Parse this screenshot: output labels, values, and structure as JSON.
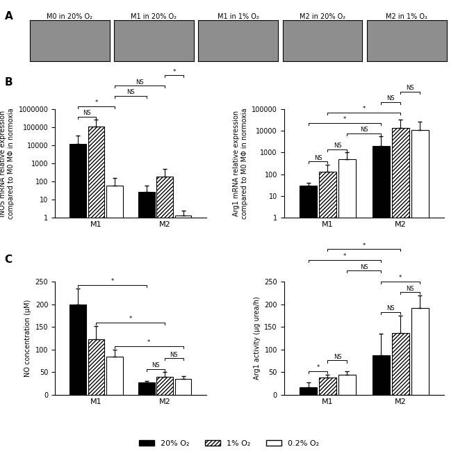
{
  "panel_labels": [
    "A",
    "B",
    "C"
  ],
  "images": [
    "M0 in 20% O₂",
    "M1 in 20% O₂",
    "M1 in 1% O₂",
    "M2 in 20% O₂",
    "M2 in 1% O₂"
  ],
  "legend": "lower center",
  "chart_data": [
    {
      "type": "bar",
      "log": "y",
      "y_label": "iNOS mRNA relative expression\ncompared to M0 MΦ in normoxia",
      "categories": [
        "M1",
        "M2"
      ],
      "ylim": [
        1,
        1000000
      ],
      "yticks": [
        1,
        10,
        100,
        1000,
        10000,
        100000,
        1000000
      ],
      "series": [
        {
          "name": "20% O₂",
          "color": "#000000",
          "values": [
            12000,
            28
          ],
          "errors": [
            22000,
            32
          ]
        },
        {
          "name": "1% O₂",
          "color": "#ffffff",
          "values": [
            110000,
            190
          ],
          "errors": [
            140000,
            310
          ]
        },
        {
          "name": "0.2% O₂",
          "color": "#ffffff",
          "values": [
            60,
            1.4
          ],
          "errors": [
            100,
            1.1
          ]
        }
      ],
      "significance": [
        {
          "a": [
            "M1",
            "20% O₂"
          ],
          "b": [
            "M1",
            "1% O₂"
          ],
          "label": "NS"
        },
        {
          "a": [
            "M1",
            "20% O₂"
          ],
          "b": [
            "M1",
            "0.2% O₂"
          ],
          "label": "*"
        },
        {
          "a": [
            "M1",
            "0.2% O₂"
          ],
          "b": [
            "M2",
            "20% O₂"
          ],
          "label": "NS"
        },
        {
          "a": [
            "M1",
            "0.2% O₂"
          ],
          "b": [
            "M2",
            "1% O₂"
          ],
          "label": "NS"
        },
        {
          "a": [
            "M2",
            "1% O₂"
          ],
          "b": [
            "M2",
            "0.2% O₂"
          ],
          "label": "*"
        }
      ]
    },
    {
      "type": "bar",
      "log": "y",
      "y_label": "Arg1 mRNA relative expression\ncompared to M0 MΦ in normoxia",
      "categories": [
        "M1",
        "M2"
      ],
      "ylim": [
        1,
        100000
      ],
      "yticks": [
        1,
        10,
        100,
        1000,
        10000,
        100000
      ],
      "series": [
        {
          "name": "20% O₂",
          "color": "#000000",
          "values": [
            30,
            2000
          ],
          "errors": [
            10,
            3500
          ]
        },
        {
          "name": "1% O₂",
          "color": "#ffffff",
          "values": [
            130,
            13000
          ],
          "errors": [
            150,
            19000
          ]
        },
        {
          "name": "0.2% O₂",
          "color": "#ffffff",
          "values": [
            500,
            11000
          ],
          "errors": [
            500,
            15000
          ]
        }
      ],
      "significance": [
        {
          "a": [
            "M1",
            "20% O₂"
          ],
          "b": [
            "M1",
            "1% O₂"
          ],
          "label": "NS"
        },
        {
          "a": [
            "M1",
            "1% O₂"
          ],
          "b": [
            "M1",
            "0.2% O₂"
          ],
          "label": "NS"
        },
        {
          "a": [
            "M1",
            "0.2% O₂"
          ],
          "b": [
            "M2",
            "20% O₂"
          ],
          "label": "NS"
        },
        {
          "a": [
            "M1",
            "20% O₂"
          ],
          "b": [
            "M2",
            "20% O₂"
          ],
          "label": "*"
        },
        {
          "a": [
            "M1",
            "1% O₂"
          ],
          "b": [
            "M2",
            "1% O₂"
          ],
          "label": "*"
        },
        {
          "a": [
            "M2",
            "20% O₂"
          ],
          "b": [
            "M2",
            "1% O₂"
          ],
          "label": "NS"
        },
        {
          "a": [
            "M2",
            "1% O₂"
          ],
          "b": [
            "M2",
            "0.2% O₂"
          ],
          "label": "NS"
        }
      ]
    },
    {
      "type": "bar",
      "y_label": "NO concentration (µM)",
      "categories": [
        "M1",
        "M2"
      ],
      "ylim": [
        0,
        250
      ],
      "yticks": [
        0,
        50,
        100,
        150,
        200,
        250
      ],
      "series": [
        {
          "name": "20% O₂",
          "color": "#000000",
          "values": [
            200,
            27
          ],
          "errors": [
            35,
            4
          ]
        },
        {
          "name": "1% O₂",
          "color": "#ffffff",
          "values": [
            122,
            40
          ],
          "errors": [
            30,
            10
          ]
        },
        {
          "name": "0.2% O₂",
          "color": "#ffffff",
          "values": [
            84,
            35
          ],
          "errors": [
            16,
            6
          ]
        }
      ],
      "significance": [
        {
          "a": [
            "M2",
            "20% O₂"
          ],
          "b": [
            "M2",
            "1% O₂"
          ],
          "label": "NS"
        },
        {
          "a": [
            "M2",
            "1% O₂"
          ],
          "b": [
            "M2",
            "0.2% O₂"
          ],
          "label": "NS"
        },
        {
          "a": [
            "M1",
            "0.2% O₂"
          ],
          "b": [
            "M2",
            "0.2% O₂"
          ],
          "label": "*"
        },
        {
          "a": [
            "M1",
            "1% O₂"
          ],
          "b": [
            "M2",
            "1% O₂"
          ],
          "label": "*"
        },
        {
          "a": [
            "M1",
            "20% O₂"
          ],
          "b": [
            "M2",
            "20% O₂"
          ],
          "label": "*"
        }
      ]
    },
    {
      "type": "bar",
      "y_label": "Arg1 activity (µg urea/h)",
      "categories": [
        "M1",
        "M2"
      ],
      "ylim": [
        0,
        250
      ],
      "yticks": [
        0,
        50,
        100,
        150,
        200,
        250
      ],
      "series": [
        {
          "name": "20% O₂",
          "color": "#000000",
          "values": [
            17,
            88
          ],
          "errors": [
            10,
            47
          ]
        },
        {
          "name": "1% O₂",
          "color": "#ffffff",
          "values": [
            38,
            137
          ],
          "errors": [
            7,
            38
          ]
        },
        {
          "name": "0.2% O₂",
          "color": "#ffffff",
          "values": [
            45,
            192
          ],
          "errors": [
            8,
            27
          ]
        }
      ],
      "significance": [
        {
          "a": [
            "M1",
            "20% O₂"
          ],
          "b": [
            "M1",
            "1% O₂"
          ],
          "label": "*"
        },
        {
          "a": [
            "M1",
            "1% O₂"
          ],
          "b": [
            "M1",
            "0.2% O₂"
          ],
          "label": "NS"
        },
        {
          "a": [
            "M2",
            "20% O₂"
          ],
          "b": [
            "M2",
            "1% O₂"
          ],
          "label": "NS"
        },
        {
          "a": [
            "M2",
            "1% O₂"
          ],
          "b": [
            "M2",
            "0.2% O₂"
          ],
          "label": "NS"
        },
        {
          "a": [
            "M2",
            "20% O₂"
          ],
          "b": [
            "M2",
            "0.2% O₂"
          ],
          "label": "*"
        },
        {
          "a": [
            "M1",
            "0.2% O₂"
          ],
          "b": [
            "M2",
            "20% O₂"
          ],
          "label": "NS"
        },
        {
          "a": [
            "M1",
            "20% O₂"
          ],
          "b": [
            "M2",
            "20% O₂"
          ],
          "label": "*"
        },
        {
          "a": [
            "M1",
            "1% O₂"
          ],
          "b": [
            "M2",
            "1% O₂"
          ],
          "label": "*"
        }
      ]
    }
  ]
}
